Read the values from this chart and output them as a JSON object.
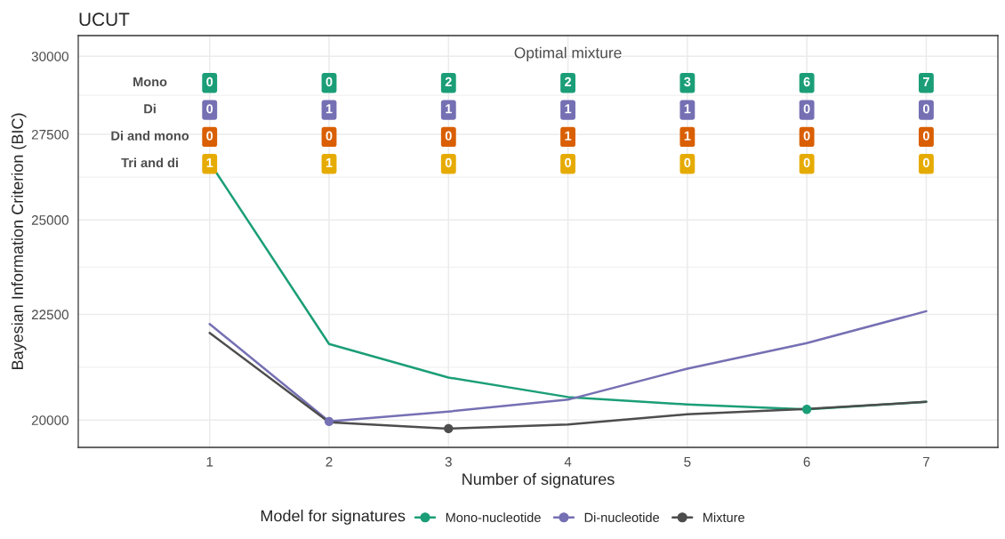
{
  "chart_data": {
    "type": "line",
    "title": "UCUT",
    "xlabel": "Number of signatures",
    "ylabel": "Bayesian Information Criterion (BIC)",
    "legend_title": "Model for signatures",
    "x": [
      1,
      2,
      3,
      4,
      5,
      6,
      7
    ],
    "series": [
      {
        "name": "Mono-nucleotide",
        "color": "#1b9e77",
        "values": [
          26650,
          21770,
          20970,
          20520,
          20350,
          20240,
          20410
        ]
      },
      {
        "name": "Di-nucleotide",
        "color": "#7570b3",
        "values": [
          22260,
          19970,
          20190,
          20460,
          21180,
          21790,
          22580
        ]
      },
      {
        "name": "Mixture",
        "color": "#4d4d4d",
        "values": [
          22040,
          19950,
          19810,
          19900,
          20130,
          20250,
          20410
        ]
      },
      {
        "type": "scatter",
        "color": "#7570b3",
        "x": [
          2
        ],
        "values": [
          19970
        ]
      },
      {
        "type": "scatter",
        "color": "#4d4d4d",
        "x": [
          3
        ],
        "values": [
          19810
        ]
      },
      {
        "type": "scatter",
        "color": "#1b9e77",
        "x": [
          6
        ],
        "values": [
          20240
        ]
      }
    ],
    "log": true,
    "xlim": [
      -0.1,
      7.6
    ],
    "xticks": [
      1,
      2,
      3,
      4,
      5,
      6,
      7
    ],
    "ylim": [
      19400,
      30700
    ],
    "yticks": [
      20000,
      22500,
      25000,
      27500,
      30000
    ],
    "grid": true,
    "legend": "bottom",
    "line_style": "solid",
    "annotations": [
      "Optimal mixture",
      "Mono",
      "0",
      "0",
      "2",
      "2",
      "3",
      "6",
      "7",
      "Di",
      "0",
      "1",
      "1",
      "1",
      "1",
      "0",
      "0",
      "Di and mono",
      "0",
      "0",
      "0",
      "1",
      "1",
      "0",
      "0",
      "Tri and di",
      "1",
      "1",
      "0",
      "0",
      "0",
      "0",
      "0"
    ]
  }
}
